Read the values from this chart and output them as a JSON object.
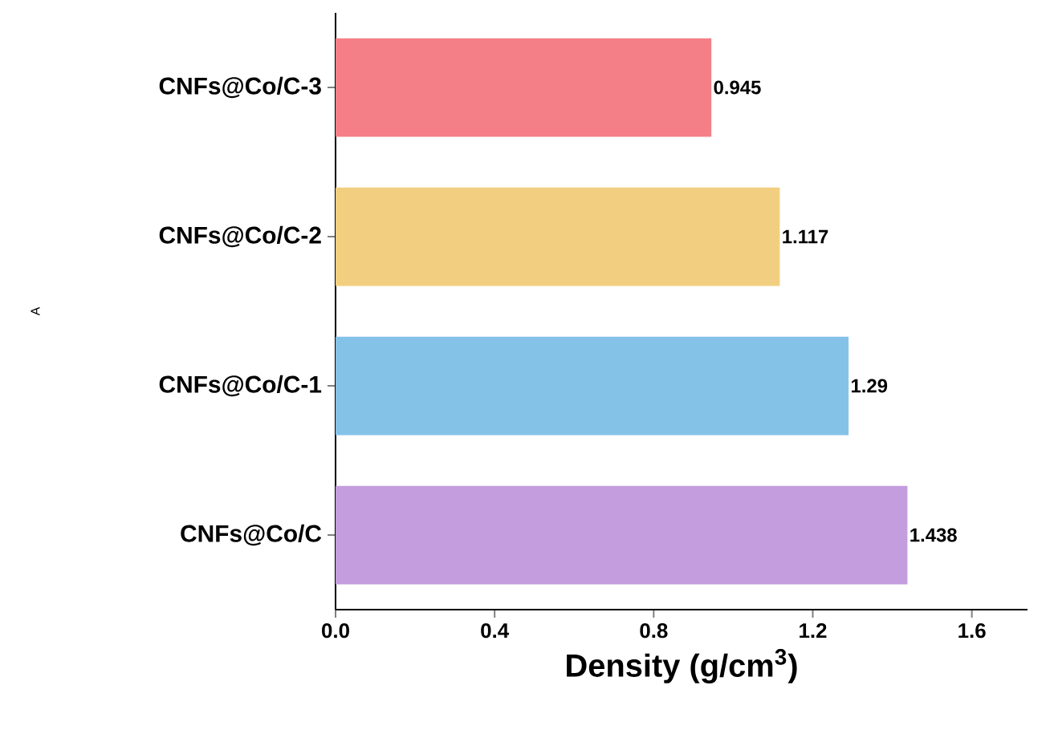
{
  "chart_data": {
    "type": "bar",
    "orientation": "horizontal",
    "xlabel": "Density (g/cm$^{3}$)",
    "annotations": [
      "A"
    ],
    "categories": [
      "CNFs@Co/C-3",
      "CNFs@Co/C-2",
      "CNFs@Co/C-1",
      "CNFs@Co/C"
    ],
    "values": [
      0.945,
      1.117,
      1.29,
      1.438
    ],
    "colors": [
      "#f47f86",
      "#f2cf80",
      "#84c2e8",
      "#c39ddd"
    ],
    "xlim": [
      0,
      1.74
    ],
    "xticks": [
      {
        "value": 0,
        "label": "0.0"
      },
      0.4,
      0.8,
      1.2,
      1.6
    ],
    "data_labels": true,
    "grid": false
  }
}
